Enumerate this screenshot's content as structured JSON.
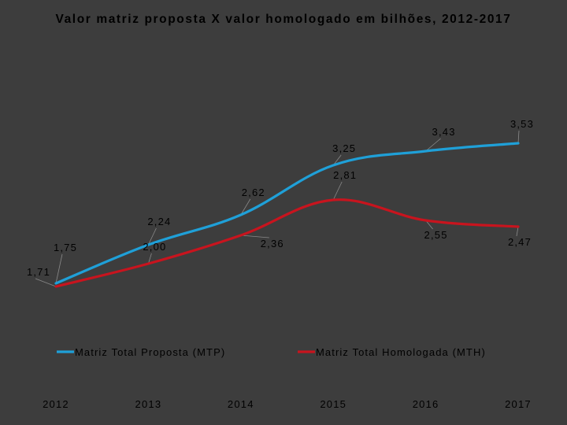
{
  "chart_data": {
    "type": "line",
    "title": "Valor  matriz proposta X valor homologado em bilhões, 2012-2017",
    "categories": [
      "2012",
      "2013",
      "2014",
      "2015",
      "2016",
      "2017"
    ],
    "series": [
      {
        "name": "Matriz Total Proposta (MTP)",
        "color": "#1fa0d8",
        "values": [
          1.75,
          2.24,
          2.62,
          3.25,
          3.43,
          3.53
        ],
        "labels": [
          "1,75",
          "2,24",
          "2,62",
          "3,25",
          "3,43",
          "3,53"
        ]
      },
      {
        "name": "Matriz Total Homologada (MTH)",
        "color": "#c8141e",
        "values": [
          1.71,
          2.0,
          2.36,
          2.81,
          2.55,
          2.47
        ],
        "labels": [
          "1,71",
          "2,00",
          "2,36",
          "2,81",
          "2,55",
          "2,47"
        ]
      }
    ],
    "xlabel": "",
    "ylabel": "",
    "ylim": [
      1.2,
      4.4
    ],
    "grid": false,
    "legend": "bottom-center"
  },
  "colors": {
    "background": "#3d3d3d",
    "leader_line": "#8a8a8a"
  }
}
